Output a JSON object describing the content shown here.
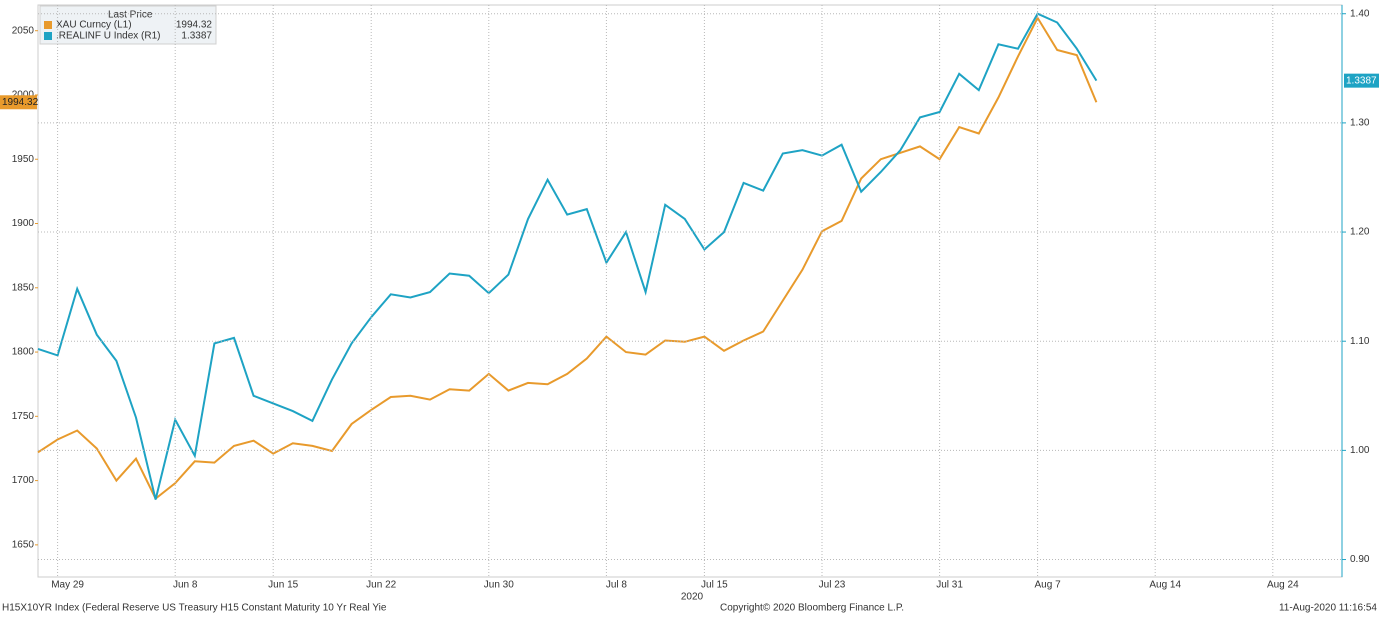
{
  "chart_data": {
    "type": "line",
    "legend_title": "Last Price",
    "categories": [
      null,
      "May 29",
      null,
      null,
      null,
      null,
      null,
      "Jun 8",
      null,
      null,
      null,
      null,
      "Jun 15",
      null,
      null,
      null,
      null,
      "Jun 22",
      null,
      null,
      null,
      null,
      null,
      "Jun 30",
      null,
      null,
      null,
      null,
      null,
      "Jul 8",
      null,
      null,
      null,
      null,
      "Jul 15",
      null,
      null,
      null,
      null,
      null,
      "Jul 23",
      null,
      null,
      null,
      null,
      null,
      "Jul 31",
      null,
      null,
      null,
      null,
      "Aug 7",
      null,
      null,
      null,
      null,
      null,
      "Aug 14",
      null,
      null,
      null,
      null,
      null,
      "Aug 24",
      null,
      null,
      null
    ],
    "series": [
      {
        "name": "XAU Curncy  (L1)",
        "color": "#e89a2c",
        "axis": "y",
        "last_label": "1994.32",
        "values": [
          1722,
          1732,
          1739,
          1725,
          1700,
          1717,
          1686,
          1698,
          1715,
          1714,
          1727,
          1731,
          1721,
          1729,
          1727,
          1723,
          1744,
          1755,
          1765,
          1766,
          1763,
          1771,
          1770,
          1783,
          1770,
          1776,
          1775,
          1783,
          1795,
          1812,
          1800,
          1798,
          1809,
          1808,
          1812,
          1801,
          1809,
          1816,
          1840,
          1864,
          1894,
          1902,
          1935,
          1950,
          1955,
          1960,
          1950,
          1975,
          1970,
          1998,
          2030,
          2060,
          2035,
          2031,
          1994.32,
          null,
          null,
          null,
          null,
          null,
          null,
          null,
          null,
          null,
          null,
          null,
          null
        ]
      },
      {
        "name": ".REALINF U Index  (R1)",
        "color": "#1ea3c4",
        "axis": "y2",
        "last_label": "1.3387",
        "values": [
          1.093,
          1.087,
          1.148,
          1.106,
          1.082,
          1.03,
          0.955,
          1.028,
          0.995,
          1.098,
          1.103,
          1.05,
          1.043,
          1.036,
          1.027,
          1.065,
          1.098,
          1.122,
          1.143,
          1.14,
          1.145,
          1.162,
          1.16,
          1.144,
          1.161,
          1.212,
          1.248,
          1.216,
          1.221,
          1.172,
          1.2,
          1.145,
          1.225,
          1.212,
          1.184,
          1.2,
          1.245,
          1.238,
          1.272,
          1.275,
          1.27,
          1.28,
          1.237,
          1.255,
          1.275,
          1.305,
          1.31,
          1.345,
          1.33,
          1.372,
          1.368,
          1.4,
          1.392,
          1.368,
          1.3387,
          null,
          null,
          null,
          null,
          null,
          null,
          null,
          null,
          null,
          null,
          null,
          null
        ]
      }
    ],
    "ylim": [
      1625,
      2070
    ],
    "yticks": [
      1650,
      1700,
      1750,
      1800,
      1850,
      1900,
      1950,
      2000,
      2050
    ],
    "y2lim": [
      0.884,
      1.408
    ],
    "y2ticks": [
      {
        "value": 0.9,
        "label": "0.90"
      },
      {
        "value": 1.0,
        "label": "1.00"
      },
      {
        "value": 1.1,
        "label": "1.10"
      },
      {
        "value": 1.2,
        "label": "1.20"
      },
      {
        "value": 1.3,
        "label": "1.30"
      },
      {
        "value": 1.4,
        "label": "1.40"
      }
    ],
    "grid": true,
    "legend": "upper left",
    "year_label": "2020",
    "footer_left": "H15X10YR Index (Federal Reserve US Treasury H15 Constant Maturity 10 Yr Real Yie",
    "footer_center": "Copyright© 2020 Bloomberg Finance L.P.",
    "footer_right": "11-Aug-2020 11:16:54"
  }
}
